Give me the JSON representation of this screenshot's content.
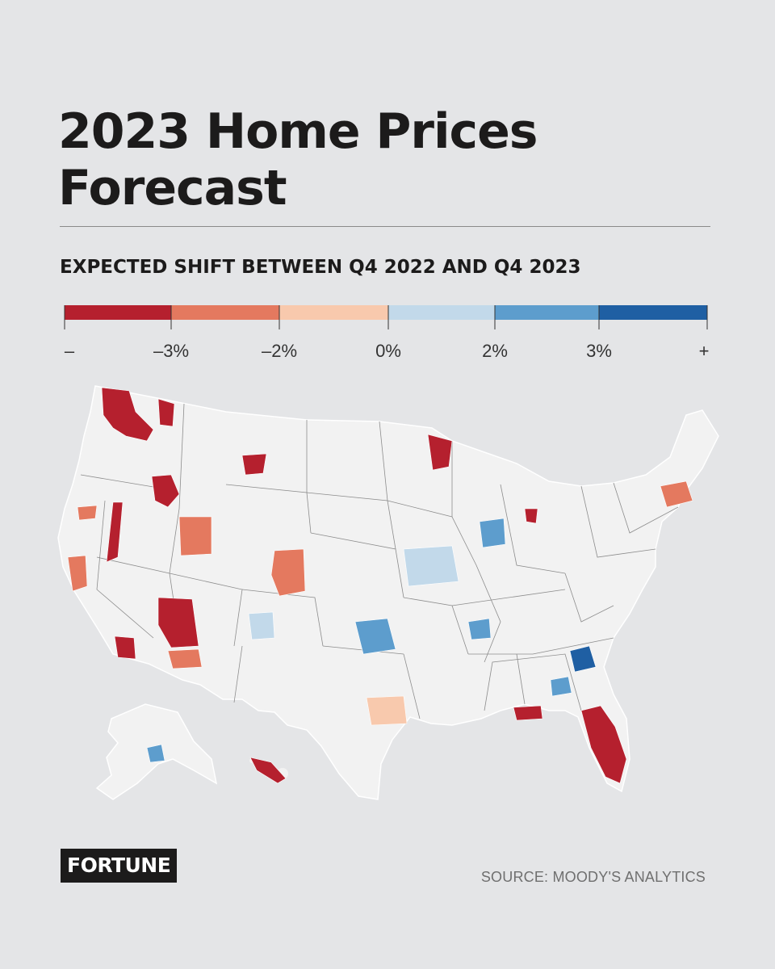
{
  "title": "2023 Home Prices Forecast",
  "subtitle": "EXPECTED SHIFT BETWEEN Q4 2022 AND Q4 2023",
  "legend": {
    "bins": [
      {
        "color": "#b5202e"
      },
      {
        "color": "#e4795f"
      },
      {
        "color": "#f8c9ad"
      },
      {
        "color": "#c2d9ea"
      },
      {
        "color": "#5d9dcd"
      },
      {
        "color": "#1f5fa3"
      }
    ],
    "ticks": [
      "–",
      "–3%",
      "–2%",
      "0%",
      "2%",
      "3%",
      "+"
    ]
  },
  "map": {
    "base_color": "#f2f2f2",
    "border_color": "#8c8c8c",
    "regions": [
      {
        "name": "Seattle-WA",
        "bin": 0
      },
      {
        "name": "Eastern-WA",
        "bin": 0
      },
      {
        "name": "Boise-ID",
        "bin": 0
      },
      {
        "name": "Montana-W",
        "bin": 0
      },
      {
        "name": "Reno-NV",
        "bin": 0
      },
      {
        "name": "Salt-Lake-UT",
        "bin": 1
      },
      {
        "name": "Phoenix-AZ",
        "bin": 0
      },
      {
        "name": "Tucson-AZ",
        "bin": 1
      },
      {
        "name": "Denver-CO",
        "bin": 1
      },
      {
        "name": "Oregon-S",
        "bin": 1
      },
      {
        "name": "San-Diego-CA",
        "bin": 0
      },
      {
        "name": "Northern-CA",
        "bin": 1
      },
      {
        "name": "Minnesota-N",
        "bin": 0
      },
      {
        "name": "Florida",
        "bin": 0
      },
      {
        "name": "Florida-Panhandle",
        "bin": 0
      },
      {
        "name": "Michigan",
        "bin": 0
      },
      {
        "name": "Carolinas",
        "bin": 5
      },
      {
        "name": "Georgia",
        "bin": 4
      },
      {
        "name": "Tennessee",
        "bin": 4
      },
      {
        "name": "Indiana",
        "bin": 4
      },
      {
        "name": "Oklahoma",
        "bin": 4
      },
      {
        "name": "New-England",
        "bin": 1
      },
      {
        "name": "New-Mexico",
        "bin": 3
      },
      {
        "name": "Midwest",
        "bin": 3
      },
      {
        "name": "Texas-Central",
        "bin": 2
      },
      {
        "name": "Hawaii",
        "bin": 0
      },
      {
        "name": "Alaska",
        "bin": 4
      }
    ]
  },
  "logo": "FORTUNE",
  "source": "SOURCE: MOODY'S ANALYTICS"
}
